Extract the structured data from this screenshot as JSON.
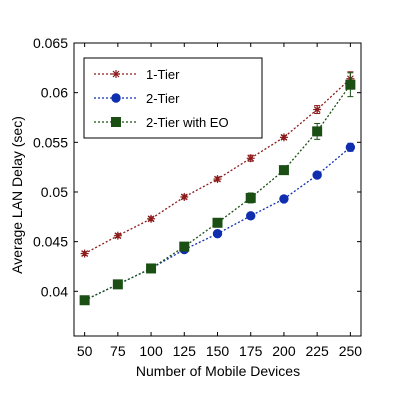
{
  "chart_data": {
    "type": "line",
    "xlabel": "Number of Mobile Devices",
    "ylabel": "Average LAN Delay (sec)",
    "x": [
      50,
      75,
      100,
      125,
      150,
      175,
      200,
      225,
      250
    ],
    "xticks": [
      "50",
      "75",
      "100",
      "125",
      "150",
      "175",
      "200",
      "225",
      "250"
    ],
    "yticks": [
      "0.04",
      "0.045",
      "0.05",
      "0.055",
      "0.06",
      "0.065"
    ],
    "xlim": [
      42,
      258
    ],
    "ylim": [
      0.0355,
      0.065
    ],
    "grid": false,
    "legend_position": "top-left",
    "series": [
      {
        "name": "1-Tier",
        "color": "#8B1A1A",
        "marker": "star",
        "values": [
          0.0438,
          0.0456,
          0.0473,
          0.0495,
          0.0513,
          0.0534,
          0.0555,
          0.0583,
          0.0614
        ],
        "errors": [
          0.0002,
          0.0002,
          0.0002,
          0.0002,
          0.0002,
          0.0003,
          0.0002,
          0.0004,
          0.0007
        ]
      },
      {
        "name": "2-Tier",
        "color": "#0F2FAF",
        "marker": "circle",
        "values": [
          0.0391,
          0.0407,
          0.0423,
          0.0442,
          0.0458,
          0.0476,
          0.0493,
          0.0517,
          0.0545
        ],
        "errors": [
          0.0001,
          0.0001,
          0.0001,
          0.0002,
          0.0002,
          0.0002,
          0.0002,
          0.0002,
          0.0004
        ]
      },
      {
        "name": "2-Tier with EO",
        "color": "#1B4F14",
        "marker": "square",
        "values": [
          0.0391,
          0.0407,
          0.0423,
          0.0445,
          0.0469,
          0.0494,
          0.0522,
          0.0561,
          0.0608
        ],
        "errors": [
          0.0001,
          0.0001,
          0.0002,
          0.0003,
          0.0004,
          0.0005,
          0.0003,
          0.0008,
          0.0012
        ]
      }
    ]
  }
}
